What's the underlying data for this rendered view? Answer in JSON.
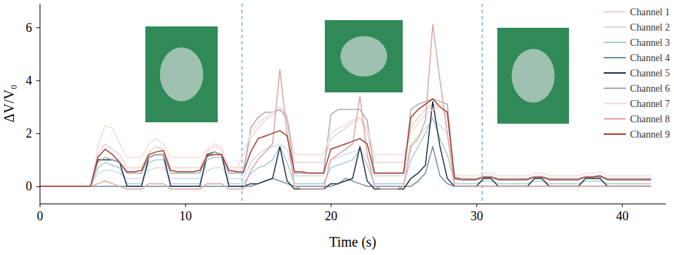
{
  "chart_data": {
    "type": "line",
    "x_label": "Time (s)",
    "y_label": "ΔV/V₀",
    "xlim": [
      0,
      43
    ],
    "ylim": [
      -0.65,
      6.9
    ],
    "xticks": [
      0,
      10,
      20,
      30,
      40
    ],
    "yticks": [
      0,
      2,
      4,
      6
    ],
    "grid": false,
    "legend": "top-right",
    "vlines": [
      13.9,
      30.4
    ],
    "x": [
      0,
      0.5,
      1,
      1.5,
      2,
      2.5,
      3,
      3.5,
      4,
      4.5,
      5,
      5.5,
      6,
      6.5,
      7,
      7.5,
      8,
      8.5,
      9,
      9.5,
      10,
      10.5,
      11,
      11.5,
      12,
      12.5,
      13,
      13.5,
      14,
      14.5,
      15,
      15.5,
      16,
      16.5,
      17,
      17.5,
      18,
      18.5,
      19,
      19.5,
      20,
      20.5,
      21,
      21.5,
      22,
      22.5,
      23,
      23.5,
      24,
      24.5,
      25,
      25.5,
      26,
      26.5,
      27,
      27.5,
      28,
      28.5,
      29,
      29.5,
      30,
      30.5,
      31,
      31.5,
      32,
      32.5,
      33,
      33.5,
      34,
      34.5,
      35,
      35.5,
      36,
      36.5,
      37,
      37.5,
      38,
      38.5,
      39,
      39.5,
      40,
      40.5,
      41,
      41.5,
      42
    ],
    "series": [
      {
        "name": "Channel 1",
        "color": "#ead3d3",
        "values": [
          0,
          0,
          0,
          0,
          0,
          0,
          0,
          0,
          1.2,
          1.6,
          1.4,
          1.2,
          0.7,
          0.7,
          0.7,
          1.3,
          1.5,
          1.4,
          0.7,
          0.7,
          0.7,
          0.7,
          0.7,
          1.3,
          1.5,
          1.4,
          0.7,
          0.7,
          0.7,
          1.8,
          2.2,
          2.5,
          2.7,
          2.9,
          2.5,
          0.9,
          0.9,
          0.9,
          0.9,
          0.9,
          1.8,
          2.0,
          2.2,
          2.4,
          2.6,
          2.0,
          0.9,
          0.9,
          0.9,
          0.9,
          0.9,
          2.2,
          2.6,
          2.9,
          3.1,
          3.0,
          2.7,
          0.25,
          0.25,
          0.25,
          0.25,
          0.35,
          0.35,
          0.25,
          0.25,
          0.25,
          0.25,
          0.25,
          0.35,
          0.35,
          0.25,
          0.25,
          0.25,
          0.25,
          0.25,
          0.35,
          0.35,
          0.35,
          0.25,
          0.25,
          0.25,
          0.25,
          0.25,
          0.25,
          0.25
        ]
      },
      {
        "name": "Channel 2",
        "color": "#d3dde5",
        "values": [
          0,
          0,
          0,
          0,
          0,
          0,
          0,
          0,
          0.5,
          0.6,
          0.6,
          0.5,
          0.3,
          0.3,
          0.3,
          0.6,
          0.7,
          0.7,
          0.3,
          0.3,
          0.3,
          0.3,
          0.3,
          0.6,
          0.7,
          0.7,
          0.3,
          0.3,
          0.3,
          0.9,
          1.2,
          1.4,
          1.5,
          1.6,
          1.4,
          0.4,
          0.4,
          0.4,
          0.4,
          0.4,
          1.0,
          1.1,
          1.2,
          1.3,
          1.4,
          1.1,
          0.4,
          0.4,
          0.4,
          0.4,
          0.4,
          1.6,
          1.9,
          2.2,
          2.5,
          2.3,
          2.0,
          0.3,
          0.3,
          0.3,
          0.3,
          0.4,
          0.4,
          0.3,
          0.3,
          0.3,
          0.3,
          0.3,
          0.4,
          0.4,
          0.3,
          0.3,
          0.3,
          0.3,
          0.3,
          0.4,
          0.4,
          0.4,
          0.3,
          0.3,
          0.3,
          0.3,
          0.3,
          0.3,
          0.3
        ]
      },
      {
        "name": "Channel 3",
        "color": "#a6cad6",
        "values": [
          0,
          0,
          0,
          0,
          0,
          0,
          0,
          0,
          0.7,
          0.9,
          0.8,
          0.7,
          0.1,
          0.1,
          0.1,
          0.9,
          1.0,
          1.0,
          0.1,
          0.1,
          0.1,
          0.1,
          0.1,
          1.0,
          1.1,
          1.1,
          0.1,
          0.1,
          0.1,
          0.5,
          0.7,
          0.8,
          1.0,
          1.5,
          0.9,
          0.1,
          0.1,
          0.1,
          0.1,
          0.1,
          0.7,
          0.8,
          0.9,
          1.0,
          1.4,
          0.8,
          0.1,
          0.1,
          0.1,
          0.1,
          0.1,
          1.0,
          1.5,
          2.0,
          2.6,
          1.8,
          1.2,
          0.1,
          0.1,
          0.1,
          0.1,
          0.2,
          0.2,
          0.1,
          0.1,
          0.1,
          0.1,
          0.1,
          0.2,
          0.2,
          0.1,
          0.1,
          0.1,
          0.1,
          0.1,
          0.2,
          0.2,
          0.2,
          0.1,
          0.1,
          0.1,
          0.1,
          0.1,
          0.1,
          0.1
        ]
      },
      {
        "name": "Channel 4",
        "color": "#6f8ca0",
        "values": [
          0,
          0,
          0,
          0,
          0,
          0,
          0,
          0,
          0,
          0,
          0,
          0,
          0,
          0,
          0,
          0,
          0,
          0,
          0,
          0,
          0,
          0,
          0,
          0,
          0,
          0,
          0,
          0,
          0,
          0,
          0.1,
          0.2,
          0.3,
          0.2,
          0.1,
          0,
          0,
          0,
          0,
          0,
          0,
          0.1,
          0.3,
          0.2,
          0.1,
          0,
          0,
          0,
          0,
          0,
          0,
          0,
          0.2,
          0.5,
          1.5,
          0.4,
          0.1,
          0,
          0,
          0,
          0,
          0,
          0,
          0,
          0,
          0,
          0,
          0,
          0,
          0,
          0,
          0,
          0,
          0,
          0,
          0,
          0,
          0,
          0,
          0,
          0,
          0,
          0,
          0,
          0
        ]
      },
      {
        "name": "Channel 5",
        "color": "#1c2e4a",
        "values": [
          0,
          0,
          0,
          0,
          0,
          0,
          0,
          0,
          1.0,
          1.0,
          1.0,
          0.9,
          0,
          0,
          0,
          1.1,
          1.2,
          1.2,
          0,
          0,
          0,
          0,
          0,
          1.2,
          1.3,
          1.2,
          0,
          0,
          0,
          0.1,
          0.1,
          0.2,
          0.3,
          1.5,
          0.2,
          -0.1,
          -0.1,
          -0.1,
          -0.1,
          -0.1,
          0.1,
          0.1,
          0.2,
          0.3,
          1.5,
          0.2,
          -0.1,
          -0.1,
          -0.1,
          -0.1,
          -0.1,
          0.3,
          0.5,
          0.8,
          3.2,
          1.5,
          0.3,
          0,
          0,
          0,
          0,
          0.3,
          0.3,
          0,
          0,
          0,
          0,
          0,
          0.3,
          0.3,
          0,
          0,
          0,
          0,
          0,
          0.3,
          0.3,
          0.3,
          0,
          0,
          0,
          0,
          0,
          0,
          0
        ]
      },
      {
        "name": "Channel 6",
        "color": "#a9a9b1",
        "values": [
          0,
          0,
          0,
          0,
          0,
          0,
          0,
          0,
          0.9,
          1.1,
          1.0,
          0.9,
          0.5,
          0.5,
          0.5,
          1.1,
          1.2,
          1.2,
          0.5,
          0.5,
          0.5,
          0.5,
          0.5,
          1.1,
          1.3,
          1.2,
          0.5,
          0.5,
          0.5,
          2.2,
          2.6,
          2.8,
          2.8,
          2.9,
          2.6,
          0.5,
          0.5,
          0.5,
          0.5,
          0.5,
          2.7,
          2.9,
          2.9,
          2.9,
          2.9,
          2.5,
          0.5,
          0.5,
          0.5,
          0.5,
          0.5,
          2.9,
          3.1,
          3.2,
          3.3,
          3.2,
          3.1,
          0.35,
          0.3,
          0.3,
          0.3,
          0.35,
          0.35,
          0.3,
          0.3,
          0.3,
          0.3,
          0.3,
          0.35,
          0.35,
          0.3,
          0.3,
          0.3,
          0.3,
          0.3,
          0.35,
          0.35,
          0.35,
          0.3,
          0.3,
          0.3,
          0.3,
          0.3,
          0.3,
          0.3
        ]
      },
      {
        "name": "Channel 7",
        "color": "#f3dbd7",
        "values": [
          0,
          0,
          0,
          0,
          0,
          0,
          0,
          0,
          1.5,
          2.3,
          2.2,
          1.6,
          1.1,
          1.1,
          1.1,
          1.6,
          1.8,
          1.6,
          1.1,
          1.1,
          1.1,
          1.1,
          1.1,
          1.4,
          1.6,
          1.5,
          0.6,
          0.6,
          1.2,
          2.0,
          2.4,
          2.6,
          2.8,
          3.0,
          2.7,
          1.2,
          1.2,
          1.2,
          1.2,
          1.2,
          2.0,
          2.2,
          2.3,
          2.5,
          2.6,
          2.2,
          1.2,
          1.2,
          1.2,
          1.2,
          1.2,
          2.0,
          2.4,
          2.7,
          2.9,
          3.0,
          2.6,
          0.45,
          0.4,
          0.4,
          0.4,
          0.5,
          0.5,
          0.4,
          0.4,
          0.4,
          0.4,
          0.4,
          0.5,
          0.5,
          0.4,
          0.4,
          0.4,
          0.4,
          0.4,
          0.5,
          0.5,
          0.55,
          0.4,
          0.4,
          0.4,
          0.4,
          0.4,
          0.4,
          0.4
        ]
      },
      {
        "name": "Channel 8",
        "color": "#dea39d",
        "values": [
          0,
          0,
          0,
          0,
          0,
          0,
          0,
          0,
          0.1,
          0.2,
          0.1,
          0,
          -0.1,
          -0.1,
          -0.1,
          0.1,
          0.1,
          0.1,
          -0.1,
          -0.1,
          -0.1,
          -0.1,
          -0.1,
          0.1,
          0.1,
          0.1,
          -0.1,
          -0.1,
          -0.1,
          0.6,
          1.0,
          1.3,
          1.6,
          4.4,
          2.0,
          0,
          -0.1,
          -0.1,
          -0.1,
          -0.1,
          1.0,
          1.2,
          1.4,
          1.6,
          3.4,
          1.2,
          0,
          -0.1,
          -0.1,
          -0.1,
          0,
          1.5,
          1.8,
          2.5,
          6.1,
          4.0,
          2.0,
          0,
          0,
          0,
          0,
          0,
          0,
          0,
          0,
          0,
          0,
          0,
          0,
          0,
          0,
          0,
          0,
          0,
          0,
          0,
          0,
          0,
          0,
          0,
          0,
          0,
          0,
          0,
          0
        ]
      },
      {
        "name": "Channel 9",
        "color": "#a3392a",
        "values": [
          0,
          0,
          0,
          0,
          0,
          0,
          0,
          0,
          1.1,
          1.4,
          1.2,
          0.9,
          0.55,
          0.55,
          0.6,
          1.2,
          1.3,
          1.35,
          0.6,
          0.55,
          0.55,
          0.55,
          0.6,
          1.15,
          1.2,
          1.2,
          0.6,
          0.55,
          0.55,
          1.3,
          1.8,
          1.9,
          2.0,
          2.1,
          1.9,
          0.55,
          0.55,
          0.5,
          0.5,
          0.5,
          1.4,
          1.5,
          1.6,
          1.7,
          1.8,
          1.6,
          0.5,
          0.5,
          0.5,
          0.5,
          0.5,
          2.6,
          2.9,
          3.1,
          3.3,
          3.0,
          2.8,
          0.3,
          0.25,
          0.25,
          0.25,
          0.35,
          0.35,
          0.25,
          0.25,
          0.25,
          0.25,
          0.25,
          0.35,
          0.35,
          0.25,
          0.25,
          0.25,
          0.25,
          0.25,
          0.35,
          0.35,
          0.4,
          0.25,
          0.25,
          0.25,
          0.25,
          0.25,
          0.25,
          0.25
        ]
      }
    ]
  }
}
